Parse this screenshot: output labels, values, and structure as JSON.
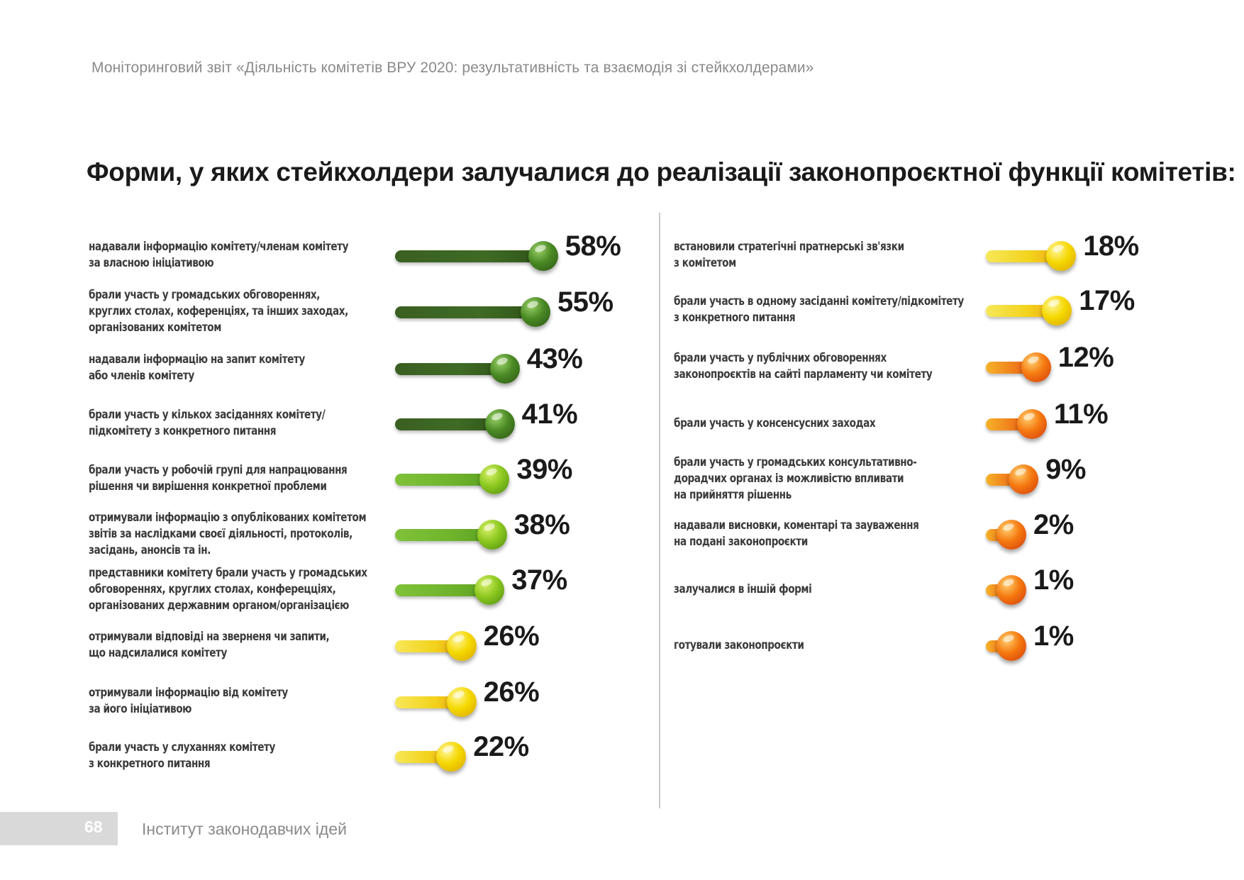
{
  "header": "Моніторинговий звіт «Діяльність комітетів ВРУ 2020: результативність та взаємодія зі стейкхолдерами»",
  "footer": {
    "page_number": "68",
    "organization": "Інститут законодавчих ідей"
  },
  "colors": {
    "dark_green": "#3f6b25",
    "light_green": "#6fb32c",
    "yellow": "#f2d21b",
    "orange": "#f07a1a"
  },
  "chart_data": {
    "type": "bar",
    "title": "Форми, у яких стейкхолдери залучалися до реалізації законопроєктної функції комітетів:",
    "xlabel": "",
    "ylabel": "",
    "xlim": [
      0,
      100
    ],
    "unit": "%",
    "columns": [
      {
        "items": [
          {
            "label": "надавали інформацію комітету/членам комітету\nза власною ініціативою",
            "value": 58,
            "value_label": "58%",
            "color_group": "dark_green"
          },
          {
            "label": "брали участь у громадських обговореннях,\nкруглих столах, коференціях, та інших заходах,\nорганізованих комітетом",
            "value": 55,
            "value_label": "55%",
            "color_group": "dark_green"
          },
          {
            "label": "надавали інформацію на запит комітету\nабо членів комітету",
            "value": 43,
            "value_label": "43%",
            "color_group": "dark_green"
          },
          {
            "label": "брали участь у кількох засіданнях комітету/\nпідкомітету з конкретного питання",
            "value": 41,
            "value_label": "41%",
            "color_group": "dark_green"
          },
          {
            "label": "брали участь у робочій групі для напрацювання\nрішення чи вирішення конкретної проблеми",
            "value": 39,
            "value_label": "39%",
            "color_group": "light_green"
          },
          {
            "label": "отримували інформацію з опублікованих комітетом\nзвітів за наслідками своєї діяльності, протоколів,\nзасідань, анонсів та ін.",
            "value": 38,
            "value_label": "38%",
            "color_group": "light_green"
          },
          {
            "label": "представники комітету брали участь у громадських\nобговореннях, круглих столах, конферецціях,\nорганізованих державним органом/організацією",
            "value": 37,
            "value_label": "37%",
            "color_group": "light_green"
          },
          {
            "label": "отримували відповіді на зверненя чи запити,\nщо надсилалися комітету",
            "value": 26,
            "value_label": "26%",
            "color_group": "yellow"
          },
          {
            "label": "отримували інформацію від комітету\nза його ініціативою",
            "value": 26,
            "value_label": "26%",
            "color_group": "yellow"
          },
          {
            "label": "брали участь у слуханнях комітету\nз конкретного питання",
            "value": 22,
            "value_label": "22%",
            "color_group": "yellow"
          }
        ]
      },
      {
        "items": [
          {
            "label": "встановили стратегічні пратнерські зв'язки\nз комітетом",
            "value": 18,
            "value_label": "18%",
            "color_group": "yellow"
          },
          {
            "label": "брали участь в одному засіданні комітету/підкомітету\nз конкретного питання",
            "value": 17,
            "value_label": "17%",
            "color_group": "yellow"
          },
          {
            "label": "брали участь у публічних обговореннях\nзаконопроєктів на сайті парламенту чи комітету",
            "value": 12,
            "value_label": "12%",
            "color_group": "orange"
          },
          {
            "label": "брали участь у консенсусних заходах",
            "value": 11,
            "value_label": "11%",
            "color_group": "orange"
          },
          {
            "label": "брали участь у громадських консультативно-\nдорадчих органах із можливістю впливати\nна прийняття рішеннь",
            "value": 9,
            "value_label": "9%",
            "color_group": "orange"
          },
          {
            "label": "надавали висновки, коментарі та зауваження\nна подані законопроєкти",
            "value": 2,
            "value_label": "2%",
            "color_group": "orange"
          },
          {
            "label": "залучалися в іншій формі",
            "value": 1,
            "value_label": "1%",
            "color_group": "orange"
          },
          {
            "label": "готували законопроєкти",
            "value": 1,
            "value_label": "1%",
            "color_group": "orange"
          }
        ]
      }
    ]
  }
}
